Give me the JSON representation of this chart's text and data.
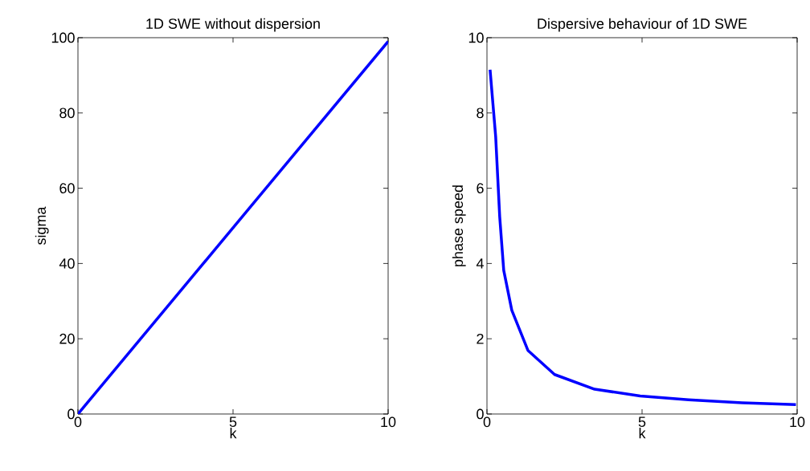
{
  "chart_data": [
    {
      "type": "line",
      "title": "1D SWE without dispersion",
      "xlabel": "k",
      "ylabel": "sigma",
      "series": [
        {
          "color": "#0000ff",
          "x": [
            0,
            10
          ],
          "values": [
            0,
            99
          ]
        }
      ],
      "xlim": [
        0,
        10
      ],
      "ylim": [
        0,
        100
      ],
      "xticks": [
        0,
        5,
        10
      ],
      "yticks": [
        0,
        20,
        40,
        60,
        80,
        100
      ],
      "grid": false,
      "marker": "none",
      "line_style": "solid"
    },
    {
      "type": "line",
      "title": "Dispersive behaviour of 1D SWE",
      "xlabel": "k",
      "ylabel": "phase speed",
      "series": [
        {
          "color": "#0000ff",
          "x": [
            0.1,
            0.28,
            0.41,
            0.54,
            0.8,
            1.32,
            2.18,
            3.47,
            4.94,
            6.5,
            8.23,
            9.96
          ],
          "values": [
            9.15,
            7.38,
            5.25,
            3.82,
            2.76,
            1.69,
            1.05,
            0.66,
            0.48,
            0.38,
            0.3,
            0.25
          ]
        }
      ],
      "xlim": [
        0,
        10
      ],
      "ylim": [
        0,
        10
      ],
      "xticks": [
        0,
        5,
        10
      ],
      "yticks": [
        0,
        2,
        4,
        6,
        8,
        10
      ],
      "grid": false,
      "marker": "none",
      "line_style": "solid"
    }
  ]
}
